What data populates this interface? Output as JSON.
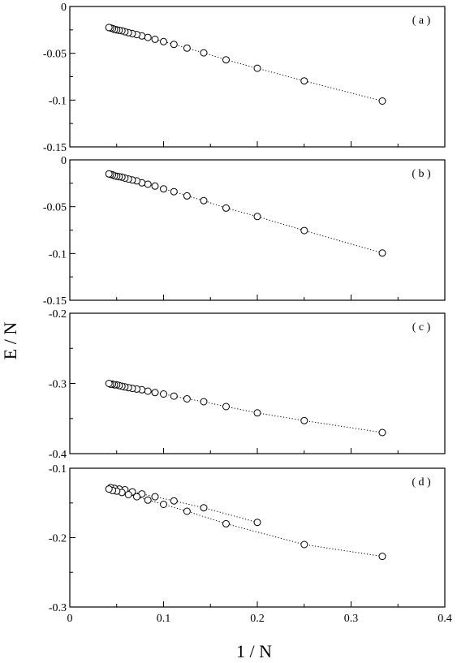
{
  "chart_data": {
    "xlabel": "1 / N",
    "ylabel": "E / N",
    "xlim": [
      0,
      0.4
    ],
    "xticks": [
      "0",
      "0.1",
      "0.2",
      "0.3",
      "0.4"
    ],
    "panels": [
      {
        "type": "scatter",
        "label": "( a )",
        "ylim": [
          -0.15,
          0
        ],
        "yticks": [
          "0",
          "-0.05",
          "-0.1",
          "-0.15"
        ],
        "series": [
          {
            "style": "circle markers, dotted line",
            "x": [
              0.3333,
              0.25,
              0.2,
              0.1667,
              0.1429,
              0.125,
              0.1111,
              0.1,
              0.0909,
              0.0833,
              0.0769,
              0.0714,
              0.0667,
              0.0625,
              0.0588,
              0.0556,
              0.0526,
              0.05,
              0.0476,
              0.0455,
              0.0435,
              0.0417
            ],
            "y": [
              -0.101,
              -0.0795,
              -0.066,
              -0.057,
              -0.0495,
              -0.0445,
              -0.0405,
              -0.0375,
              -0.035,
              -0.033,
              -0.0315,
              -0.03,
              -0.029,
              -0.028,
              -0.027,
              -0.026,
              -0.0255,
              -0.025,
              -0.0245,
              -0.0235,
              -0.023,
              -0.0225
            ]
          }
        ]
      },
      {
        "type": "scatter",
        "label": "( b )",
        "ylim": [
          -0.15,
          0
        ],
        "yticks": [
          "0",
          "-0.05",
          "-0.1",
          "-0.15"
        ],
        "series": [
          {
            "style": "circle markers, dotted line",
            "x": [
              0.3333,
              0.25,
              0.2,
              0.1667,
              0.1429,
              0.125,
              0.1111,
              0.1,
              0.0909,
              0.0833,
              0.0769,
              0.0714,
              0.0667,
              0.0625,
              0.0588,
              0.0556,
              0.0526,
              0.05,
              0.0476,
              0.0455,
              0.0435,
              0.0417
            ],
            "y": [
              -0.0995,
              -0.0755,
              -0.0605,
              -0.0515,
              -0.0435,
              -0.0385,
              -0.034,
              -0.031,
              -0.028,
              -0.026,
              -0.0245,
              -0.0225,
              -0.0215,
              -0.0205,
              -0.0195,
              -0.0185,
              -0.018,
              -0.0175,
              -0.017,
              -0.016,
              -0.0155,
              -0.015
            ]
          }
        ]
      },
      {
        "type": "scatter",
        "label": "( c )",
        "ylim": [
          -0.4,
          -0.2
        ],
        "yticks": [
          "-0.2",
          "-0.3",
          "-0.4"
        ],
        "series": [
          {
            "style": "circle markers, dotted line",
            "x": [
              0.3333,
              0.25,
              0.2,
              0.1667,
              0.1429,
              0.125,
              0.1111,
              0.1,
              0.0909,
              0.0833,
              0.0769,
              0.0714,
              0.0667,
              0.0625,
              0.0588,
              0.0556,
              0.0526,
              0.05,
              0.0476,
              0.0455,
              0.0435,
              0.0417
            ],
            "y": [
              -0.37,
              -0.353,
              -0.342,
              -0.333,
              -0.326,
              -0.322,
              -0.318,
              -0.315,
              -0.313,
              -0.311,
              -0.309,
              -0.308,
              -0.307,
              -0.306,
              -0.305,
              -0.304,
              -0.303,
              -0.302,
              -0.302,
              -0.301,
              -0.301,
              -0.3
            ]
          }
        ]
      },
      {
        "type": "scatter",
        "label": "( d )",
        "ylim": [
          -0.3,
          -0.1
        ],
        "yticks": [
          "-0.1",
          "-0.2",
          "-0.3"
        ],
        "series": [
          {
            "style": "circle markers, dotted line",
            "x": [
              0.2,
              0.1429,
              0.1111,
              0.0909,
              0.0769,
              0.0667,
              0.0588,
              0.0526,
              0.0476,
              0.0435
            ],
            "y": [
              -0.178,
              -0.157,
              -0.147,
              -0.141,
              -0.137,
              -0.134,
              -0.131,
              -0.13,
              -0.129,
              -0.128
            ]
          },
          {
            "style": "circle markers, dotted line",
            "x": [
              0.3333,
              0.25,
              0.1667,
              0.125,
              0.1,
              0.0833,
              0.0714,
              0.0625,
              0.0556,
              0.05,
              0.0455,
              0.0417
            ],
            "y": [
              -0.227,
              -0.21,
              -0.18,
              -0.162,
              -0.152,
              -0.146,
              -0.141,
              -0.138,
              -0.135,
              -0.133,
              -0.132,
              -0.13
            ]
          }
        ]
      }
    ]
  }
}
